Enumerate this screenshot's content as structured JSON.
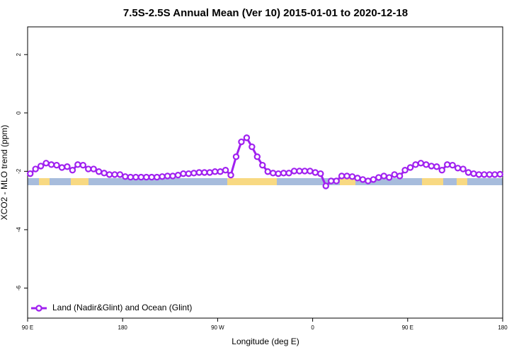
{
  "chart_data": {
    "type": "line",
    "title": "7.5S-2.5S Annual Mean (Ver 10)   2015-01-01 to 2020-12-18",
    "x_label": "Longitude (deg E)",
    "y_label": "XCO2 - MLO trend (ppm)",
    "x": [
      92.5,
      97.5,
      102.5,
      107.5,
      112.5,
      117.5,
      122.5,
      127.5,
      132.5,
      137.5,
      142.5,
      147.5,
      152.5,
      157.5,
      162.5,
      167.5,
      172.5,
      177.5,
      182.5,
      187.5,
      192.5,
      197.5,
      202.5,
      207.5,
      212.5,
      217.5,
      222.5,
      227.5,
      232.5,
      237.5,
      242.5,
      247.5,
      252.5,
      257.5,
      262.5,
      267.5,
      272.5,
      277.5,
      282.5,
      287.5,
      292.5,
      297.5,
      302.5,
      307.5,
      312.5,
      317.5,
      322.5,
      327.5,
      332.5,
      337.5,
      342.5,
      347.5,
      352.5,
      357.5,
      362.5,
      367.5,
      372.5,
      377.5,
      382.5,
      387.5,
      392.5,
      397.5,
      402.5,
      407.5,
      412.5,
      417.5,
      422.5,
      427.5,
      432.5,
      437.5,
      442.5,
      447.5,
      452.5,
      457.5,
      462.5,
      467.5,
      472.5,
      477.5,
      482.5,
      487.5,
      492.5,
      497.5,
      502.5,
      507.5,
      512.5,
      517.5,
      522.5,
      527.5,
      532.5,
      537.5
    ],
    "series": [
      {
        "name": "Land (Nadir&Glint) and Ocean (Glint)",
        "color": "#a020f0",
        "values": [
          -2.08,
          -1.92,
          -1.82,
          -1.72,
          -1.77,
          -1.79,
          -1.87,
          -1.84,
          -1.96,
          -1.77,
          -1.79,
          -1.92,
          -1.92,
          -2.01,
          -2.06,
          -2.11,
          -2.11,
          -2.11,
          -2.18,
          -2.2,
          -2.2,
          -2.2,
          -2.2,
          -2.2,
          -2.2,
          -2.18,
          -2.16,
          -2.16,
          -2.13,
          -2.08,
          -2.08,
          -2.06,
          -2.04,
          -2.04,
          -2.04,
          -2.01,
          -2.01,
          -1.96,
          -2.13,
          -1.5,
          -0.99,
          -0.85,
          -1.16,
          -1.5,
          -1.79,
          -2.01,
          -2.06,
          -2.08,
          -2.06,
          -2.06,
          -1.99,
          -1.99,
          -1.99,
          -1.99,
          -2.04,
          -2.08,
          -2.5,
          -2.33,
          -2.33,
          -2.16,
          -2.16,
          -2.18,
          -2.23,
          -2.28,
          -2.33,
          -2.28,
          -2.21,
          -2.16,
          -2.21,
          -2.11,
          -2.16,
          -1.96,
          -1.87,
          -1.77,
          -1.72,
          -1.77,
          -1.82,
          -1.84,
          -1.96,
          -1.77,
          -1.79,
          -1.89,
          -1.92,
          -2.04,
          -2.08,
          -2.11,
          -2.11,
          -2.11,
          -2.11,
          -2.1
        ]
      }
    ],
    "xlim": [
      90,
      540
    ],
    "xticks": [
      {
        "value": 90,
        "label": "90 E"
      },
      {
        "value": 180,
        "label": "180"
      },
      {
        "value": 270,
        "label": "90 W"
      },
      {
        "value": 360,
        "label": "0"
      },
      {
        "value": 450,
        "label": "90 E"
      },
      {
        "value": 540,
        "label": "180"
      }
    ],
    "ylim": [
      -7.03,
      2.95
    ],
    "yticks": [
      2,
      0,
      -2,
      -4,
      -6
    ],
    "legend": "bottom left"
  }
}
